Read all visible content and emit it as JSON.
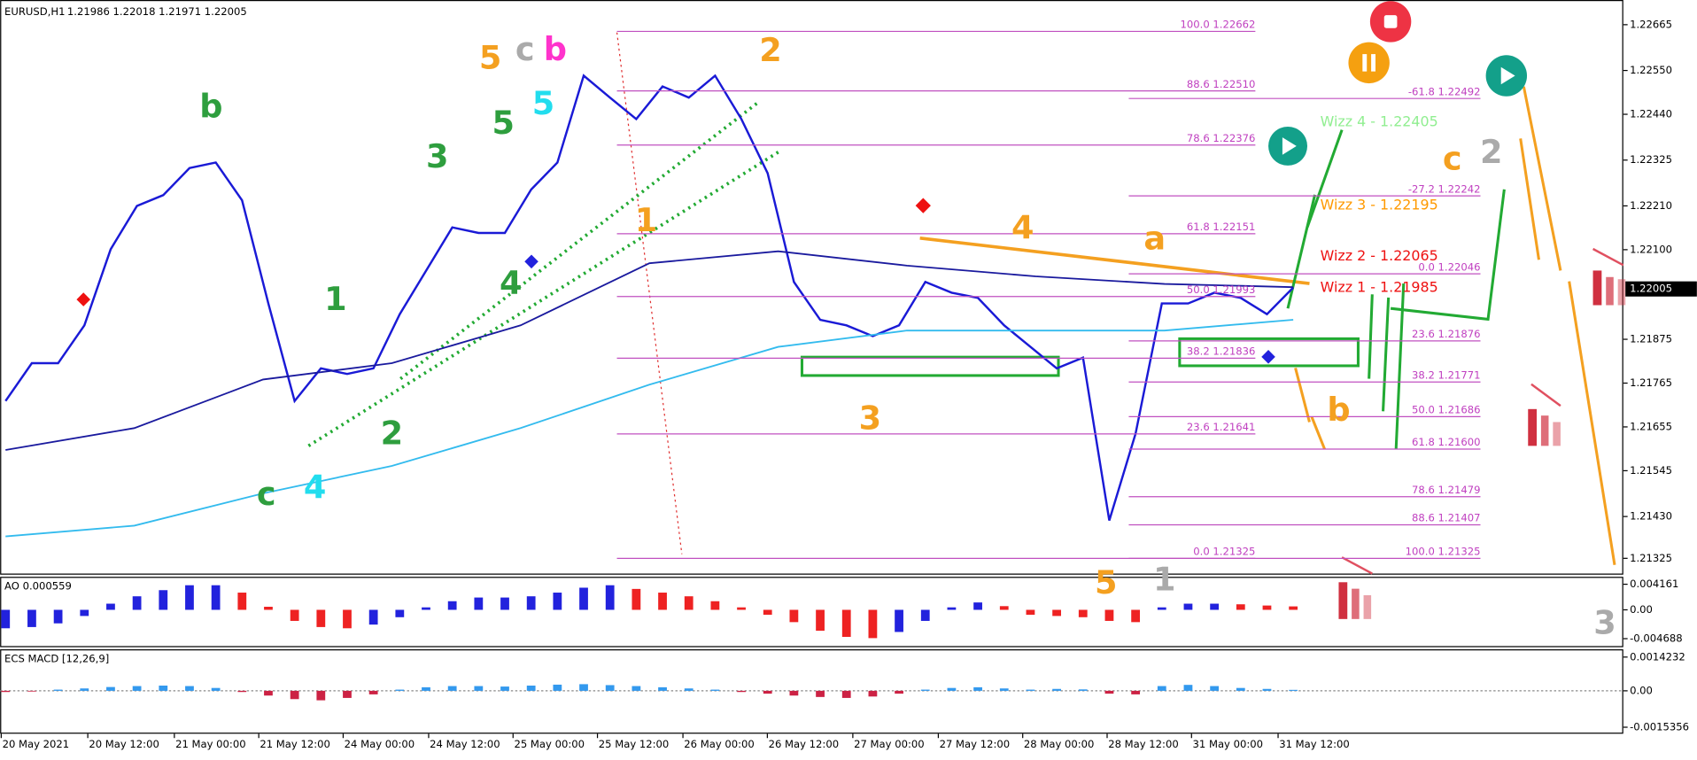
{
  "header": {
    "symbol": "EURUSD,H1",
    "ohlc": "1.21986 1.22018 1.21971 1.22005"
  },
  "last_price": "1.22005",
  "fib_left": [
    "100.0 1.22662",
    "88.6 1.22510",
    "78.6 1.22376",
    "61.8 1.22151",
    "50.0 1.21993",
    "38.2 1.21836",
    "23.6 1.21641",
    "0.0 1.21325"
  ],
  "fib_right": [
    "-61.8 1.22492",
    "-27.2 1.22242",
    "0.0 1.22046",
    "23.6 1.21876",
    "38.2 1.21771",
    "50.0 1.21686",
    "61.8 1.21600",
    "78.6 1.21479",
    "88.6 1.21407",
    "100.0 1.21325"
  ],
  "wizz": [
    {
      "text": "Wizz 4 - 1.22405",
      "color": "#90ee90"
    },
    {
      "text": "Wizz 3 - 1.22195",
      "color": "#ff9900"
    },
    {
      "text": "Wizz 2 - 1.22065",
      "color": "#ee1111"
    },
    {
      "text": "Wizz 1 - 1.21985",
      "color": "#ee1111"
    }
  ],
  "waves": [
    {
      "text": "b",
      "color": "#2e9e3e"
    },
    {
      "text": "5",
      "color": "#f4a020"
    },
    {
      "text": "c",
      "color": "#aaaaaa"
    },
    {
      "text": "b",
      "color": "#ff33cc"
    },
    {
      "text": "2",
      "color": "#f4a020"
    },
    {
      "text": "5",
      "color": "#2e9e3e"
    },
    {
      "text": "5",
      "color": "#22ddee"
    },
    {
      "text": "3",
      "color": "#2e9e3e"
    },
    {
      "text": "1",
      "color": "#f4a020"
    },
    {
      "text": "4",
      "color": "#f4a020"
    },
    {
      "text": "a",
      "color": "#f4a020"
    },
    {
      "text": "c",
      "color": "#f4a020"
    },
    {
      "text": "2",
      "color": "#aaaaaa"
    },
    {
      "text": "1",
      "color": "#2e9e3e"
    },
    {
      "text": "4",
      "color": "#2e9e3e"
    },
    {
      "text": "2",
      "color": "#2e9e3e"
    },
    {
      "text": "3",
      "color": "#f4a020"
    },
    {
      "text": "b",
      "color": "#f4a020"
    },
    {
      "text": "c",
      "color": "#2e9e3e"
    },
    {
      "text": "4",
      "color": "#22ddee"
    },
    {
      "text": "5",
      "color": "#f4a020"
    },
    {
      "text": "1",
      "color": "#aaaaaa"
    },
    {
      "text": "3",
      "color": "#aaaaaa"
    }
  ],
  "time_labels": [
    "20 May 2021",
    "20 May 12:00",
    "21 May 00:00",
    "21 May 12:00",
    "24 May 00:00",
    "24 May 12:00",
    "25 May 00:00",
    "25 May 12:00",
    "26 May 00:00",
    "26 May 12:00",
    "27 May 00:00",
    "27 May 12:00",
    "28 May 00:00",
    "28 May 12:00",
    "31 May 00:00",
    "31 May 12:00"
  ],
  "chart_data": [
    {
      "type": "line",
      "ylim": [
        1.21284,
        1.22727
      ],
      "yticks": [
        1.22665,
        {
          "value": 1.2255,
          "label": "1.22550"
        },
        {
          "value": 1.2244,
          "label": "1.22440"
        },
        1.22325,
        {
          "value": 1.2221,
          "label": "1.22210"
        },
        {
          "value": 1.221,
          "label": "1.22100"
        },
        1.21875,
        1.21765,
        1.21655,
        1.21545,
        {
          "value": 1.2143,
          "label": "1.21430"
        },
        1.21325
      ],
      "series": [
        {
          "name": "Close",
          "color": "#1a1ad6",
          "values": [
            1.2172,
            1.21815,
            1.21815,
            1.2191,
            1.22101,
            1.2221,
            1.22237,
            1.22305,
            1.22319,
            1.22224,
            1.21965,
            1.2172,
            1.21802,
            1.21788,
            1.21802,
            1.21938,
            1.22047,
            1.22156,
            1.22142,
            1.22142,
            1.22251,
            1.22319,
            1.22537,
            1.22482,
            1.22428,
            1.2251,
            1.22482,
            1.22537,
            1.22428,
            1.22292,
            1.22019,
            1.21924,
            1.2191,
            1.21883,
            1.2191,
            1.22019,
            1.21992,
            1.21979,
            1.2191,
            1.21856,
            1.21802,
            1.21829,
            1.2142,
            1.21638,
            1.21965,
            1.21965,
            1.21992,
            1.21979,
            1.21938,
            1.22005
          ]
        },
        {
          "name": "Slow MA",
          "color": "#1a1a9e",
          "values": [
            1.21597,
            1.21652,
            1.21774,
            1.21815,
            1.2191,
            1.22066,
            1.22096,
            1.2206,
            1.22033,
            1.22014,
            1.22006
          ]
        },
        {
          "name": "Long MA",
          "color": "#33bbee",
          "values": [
            1.2138,
            1.21407,
            1.21488,
            1.21557,
            1.21652,
            1.21761,
            1.21856,
            1.21897,
            1.21897,
            1.21897,
            1.21924
          ]
        }
      ]
    },
    {
      "type": "bar",
      "title": "AO 0.000559",
      "ylim": [
        -0.00607,
        0.00537
      ],
      "yticks": [
        0.004161,
        {
          "value": 0,
          "label": "0.00"
        },
        -0.004688
      ],
      "values": [
        -0.003,
        -0.0028,
        -0.0022,
        -0.001,
        0.001,
        0.0022,
        0.0032,
        0.004,
        0.004,
        0.0028,
        0.0005,
        -0.0018,
        -0.0028,
        -0.003,
        -0.0024,
        -0.0012,
        0.0004,
        0.0014,
        0.002,
        0.002,
        0.0022,
        0.0028,
        0.0036,
        0.004,
        0.0034,
        0.0028,
        0.0022,
        0.0014,
        0.0004,
        -0.0008,
        -0.002,
        -0.0034,
        -0.0044,
        -0.0046,
        -0.0036,
        -0.0018,
        0.0004,
        0.0012,
        0.0006,
        -0.0008,
        -0.001,
        -0.0012,
        -0.0018,
        -0.002,
        0.0004,
        0.001,
        0.001,
        0.0009,
        0.0007,
        0.000559
      ]
    },
    {
      "type": "bar",
      "title": "ECS MACD [12,26,9]",
      "ylim": [
        -0.00181,
        0.00175
      ],
      "yticks": [
        0.0014232,
        {
          "value": 0,
          "label": "0.00"
        },
        -0.0015356
      ],
      "values": [
        -5e-05,
        -3e-05,
        5e-05,
        0.0001,
        0.00016,
        0.0002,
        0.00022,
        0.0002,
        0.00012,
        -5e-05,
        -0.0002,
        -0.00035,
        -0.0004,
        -0.0003,
        -0.00015,
        5e-05,
        0.00015,
        0.0002,
        0.0002,
        0.00018,
        0.00022,
        0.00026,
        0.00028,
        0.00024,
        0.0002,
        0.00015,
        0.0001,
        5e-05,
        -5e-05,
        -0.00012,
        -0.0002,
        -0.00026,
        -0.0003,
        -0.00024,
        -0.00012,
        5e-05,
        0.00012,
        0.00015,
        0.0001,
        5e-05,
        8e-05,
        6e-05,
        -0.00012,
        -0.00015,
        0.0002,
        0.00025,
        0.0002,
        0.00012,
        8e-05,
        4e-05
      ]
    }
  ]
}
